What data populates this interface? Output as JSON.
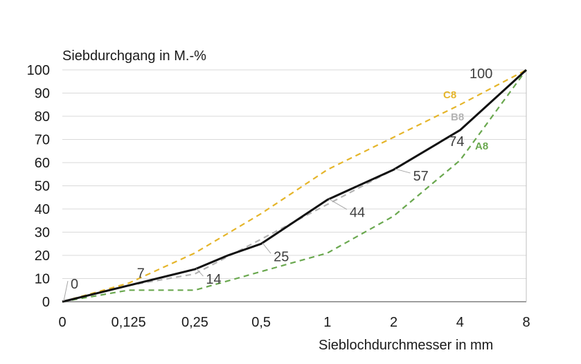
{
  "chart_data": {
    "type": "line",
    "ylabel": "Siebdurchgang in M.-%",
    "xlabel": "Sieblochdurchmesser in mm",
    "categories": [
      "0",
      "0,125",
      "0,25",
      "0,5",
      "1",
      "2",
      "4",
      "8"
    ],
    "ylim": [
      0,
      100
    ],
    "yticks": [
      0,
      10,
      20,
      30,
      40,
      50,
      60,
      70,
      80,
      90,
      100
    ],
    "grid": "horizontal",
    "series": [
      {
        "name": "C8",
        "color": "#e5b52a",
        "style": "dashed",
        "x": [
          0,
          1,
          2,
          3,
          4,
          5,
          6,
          7
        ],
        "values": [
          0,
          8,
          21,
          38,
          57,
          71,
          85,
          100
        ]
      },
      {
        "name": "B8",
        "color": "#b3b3b3",
        "style": "dashed",
        "x": [
          0,
          1,
          2,
          3,
          4,
          5,
          6,
          7
        ],
        "values": [
          0,
          7,
          12,
          27,
          42,
          57,
          74,
          100
        ]
      },
      {
        "name": "A8",
        "color": "#6aa84f",
        "style": "dashed",
        "x": [
          0,
          1,
          2,
          3,
          4,
          5,
          6,
          7
        ],
        "values": [
          0,
          5,
          5,
          13,
          21,
          37,
          61,
          100
        ]
      },
      {
        "name": "",
        "color": "#111111",
        "style": "solid",
        "x": [
          0,
          1,
          2,
          2.5,
          3,
          4,
          5,
          6,
          7
        ],
        "values": [
          0,
          7,
          14,
          20,
          25,
          44,
          57,
          74,
          100
        ]
      }
    ],
    "data_labels": [
      {
        "text": "0",
        "x": 0,
        "value": 0
      },
      {
        "text": "7",
        "x": 1,
        "value": 7
      },
      {
        "text": "14",
        "x": 2,
        "value": 14
      },
      {
        "text": "25",
        "x": 3,
        "value": 25
      },
      {
        "text": "44",
        "x": 4,
        "value": 44
      },
      {
        "text": "57",
        "x": 5,
        "value": 57
      },
      {
        "text": "74",
        "x": 6,
        "value": 74
      },
      {
        "text": "100",
        "x": 7,
        "value": 100
      }
    ],
    "series_labels": [
      {
        "text": "C8",
        "color": "#e5b52a"
      },
      {
        "text": "B8",
        "color": "#b3b3b3"
      },
      {
        "text": "A8",
        "color": "#6aa84f"
      }
    ]
  }
}
